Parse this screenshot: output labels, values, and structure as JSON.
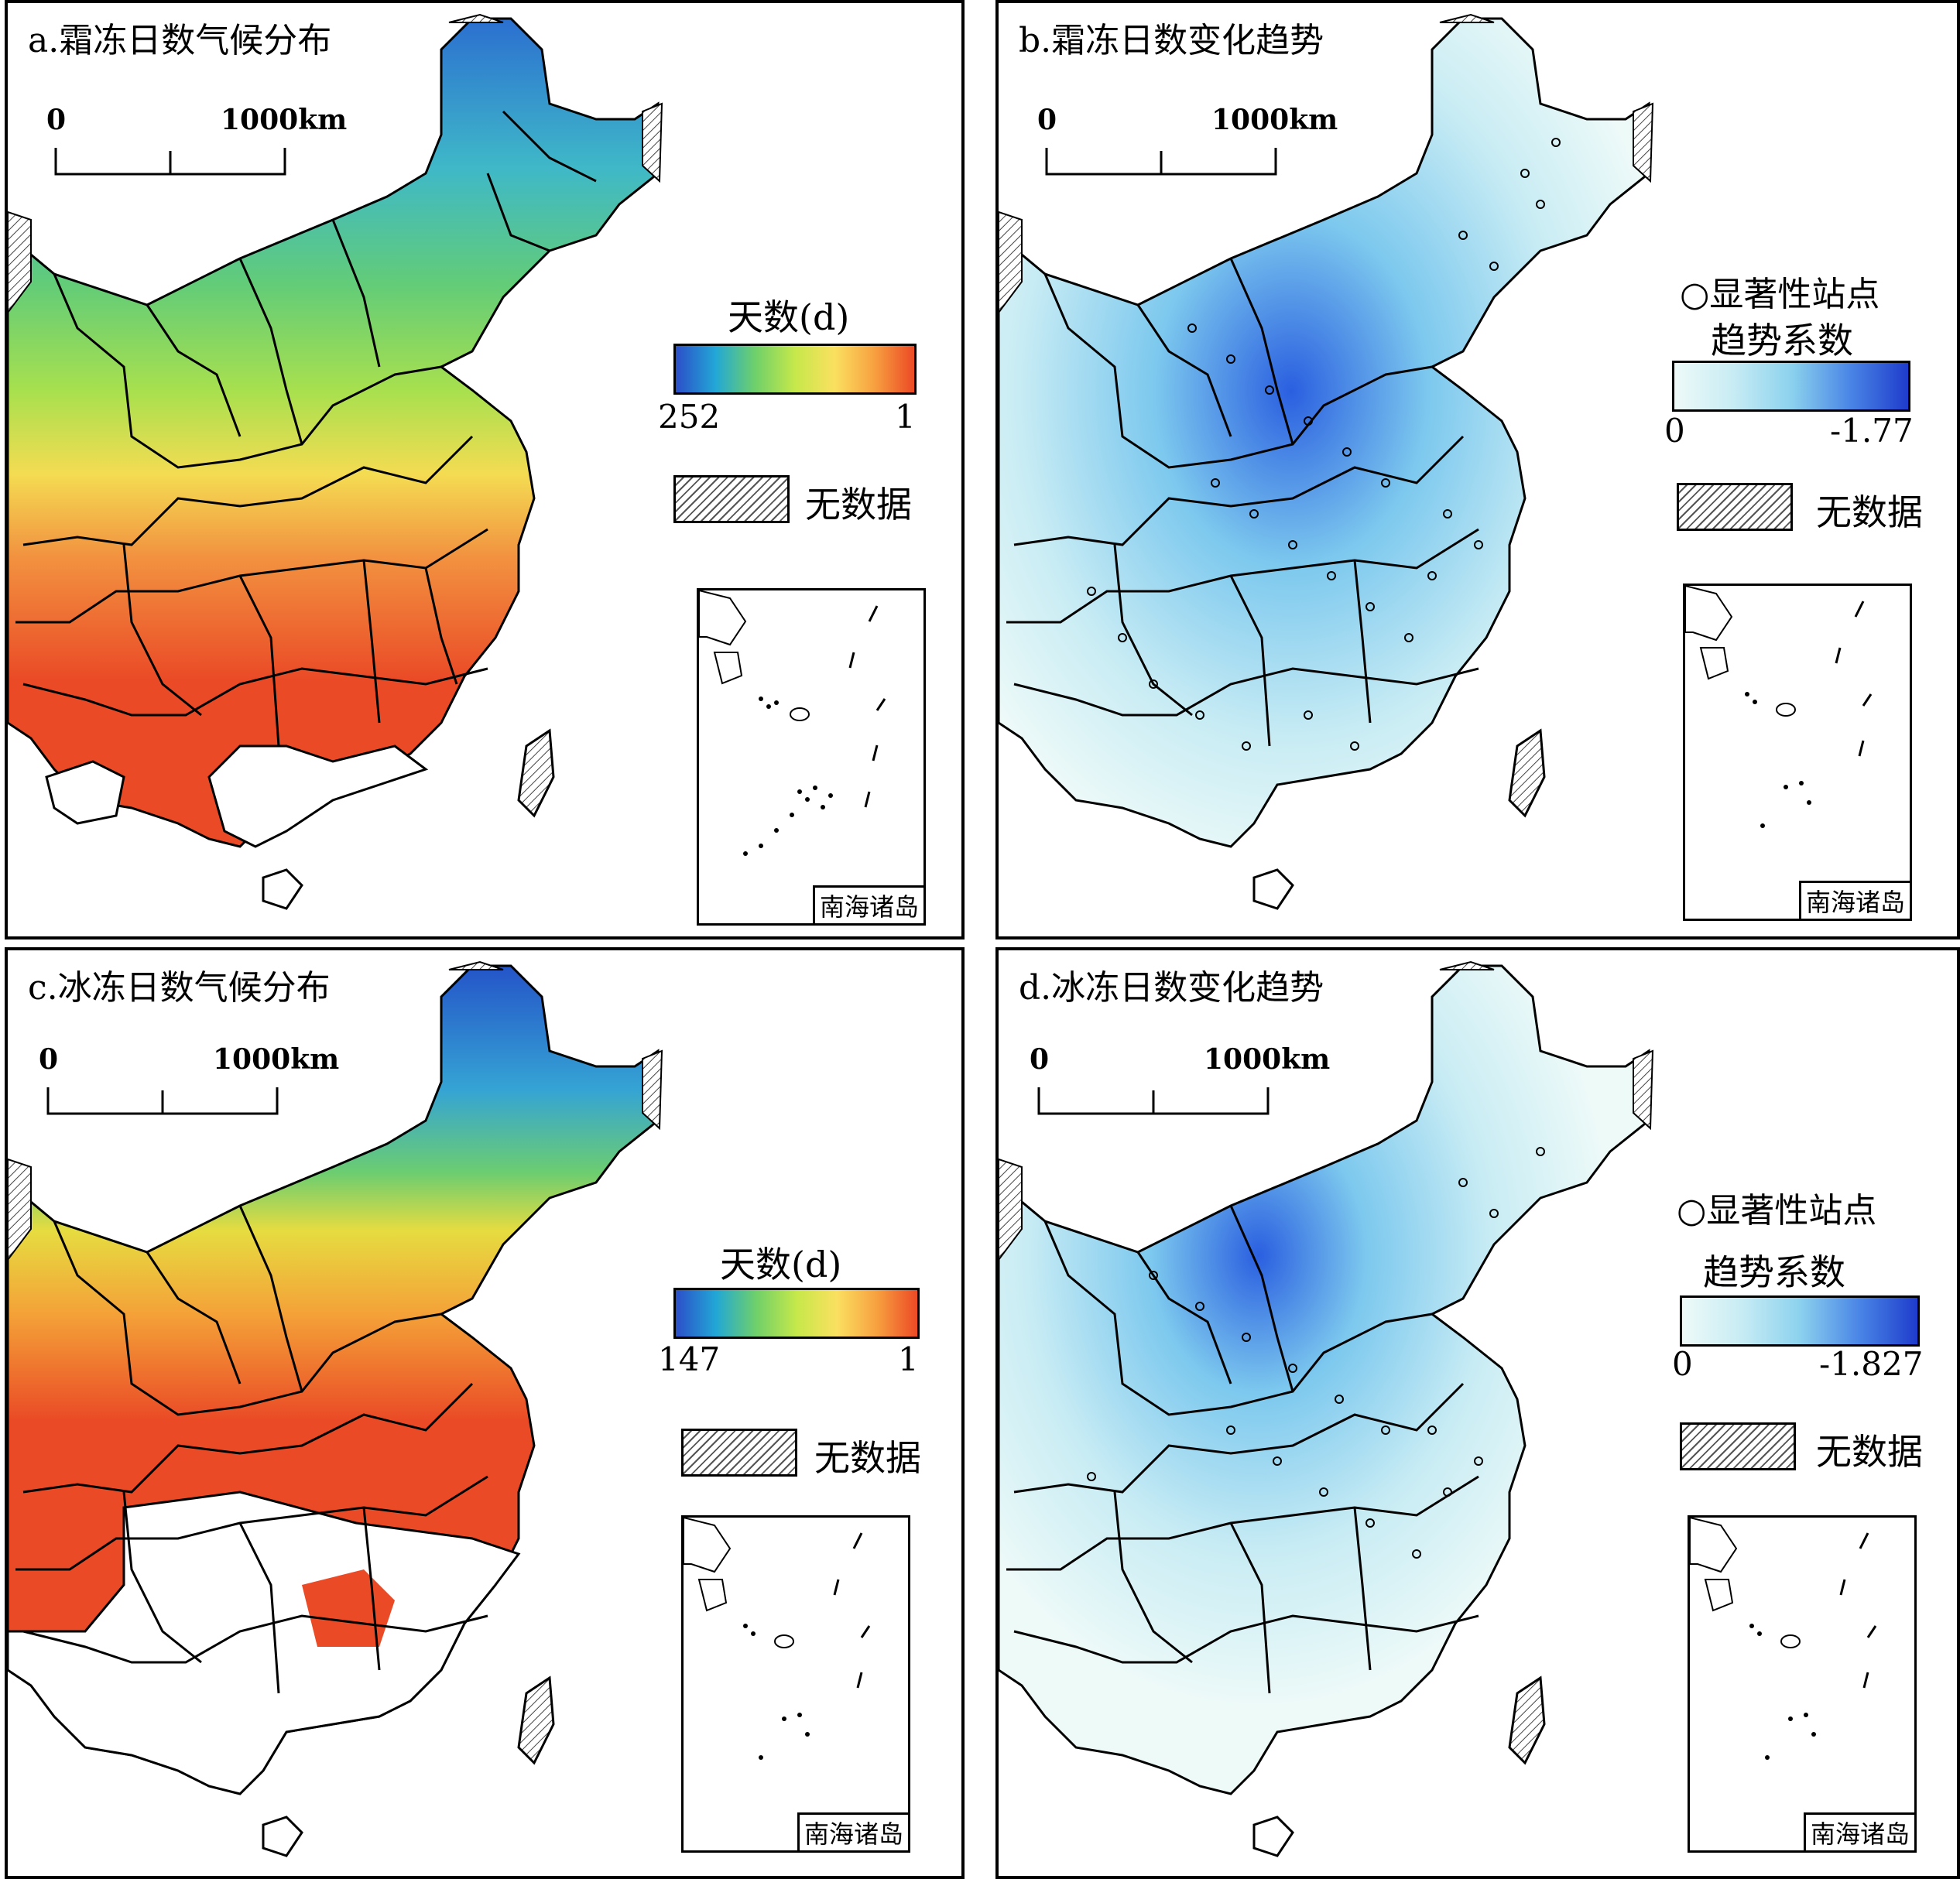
{
  "panels": [
    {
      "id": "a",
      "title": "a.霜冻日数气候分布",
      "legend_title": "天数(d)",
      "min_label": "252",
      "max_label": "1",
      "type": "climate"
    },
    {
      "id": "b",
      "title": "b.霜冻日数变化趋势",
      "sig_label": "显著性站点",
      "legend_title": "趋势系数",
      "min_label": "0",
      "max_label": "-1.77",
      "type": "trend"
    },
    {
      "id": "c",
      "title": "c.冰冻日数气候分布",
      "legend_title": "天数(d)",
      "min_label": "147",
      "max_label": "1",
      "type": "climate"
    },
    {
      "id": "d",
      "title": "d.冰冻日数变化趋势",
      "sig_label": "显著性站点",
      "legend_title": "趋势系数",
      "min_label": "0",
      "max_label": "-1.827",
      "type": "trend"
    }
  ],
  "scale_bar": {
    "start": "0",
    "end": "1000km"
  },
  "nodata_label": "无数据",
  "inset_label": "南海诸岛",
  "colors": {
    "climate_ramp": [
      "#2b4fc9",
      "#22a7d6",
      "#6fd06a",
      "#c6e84a",
      "#fbe060",
      "#f7a040",
      "#ec4a25"
    ],
    "trend_ramp": [
      "#eefaf8",
      "#c8ecf4",
      "#8cd2ee",
      "#4a86e6",
      "#1f3ccc"
    ],
    "boundary": "#000000"
  }
}
